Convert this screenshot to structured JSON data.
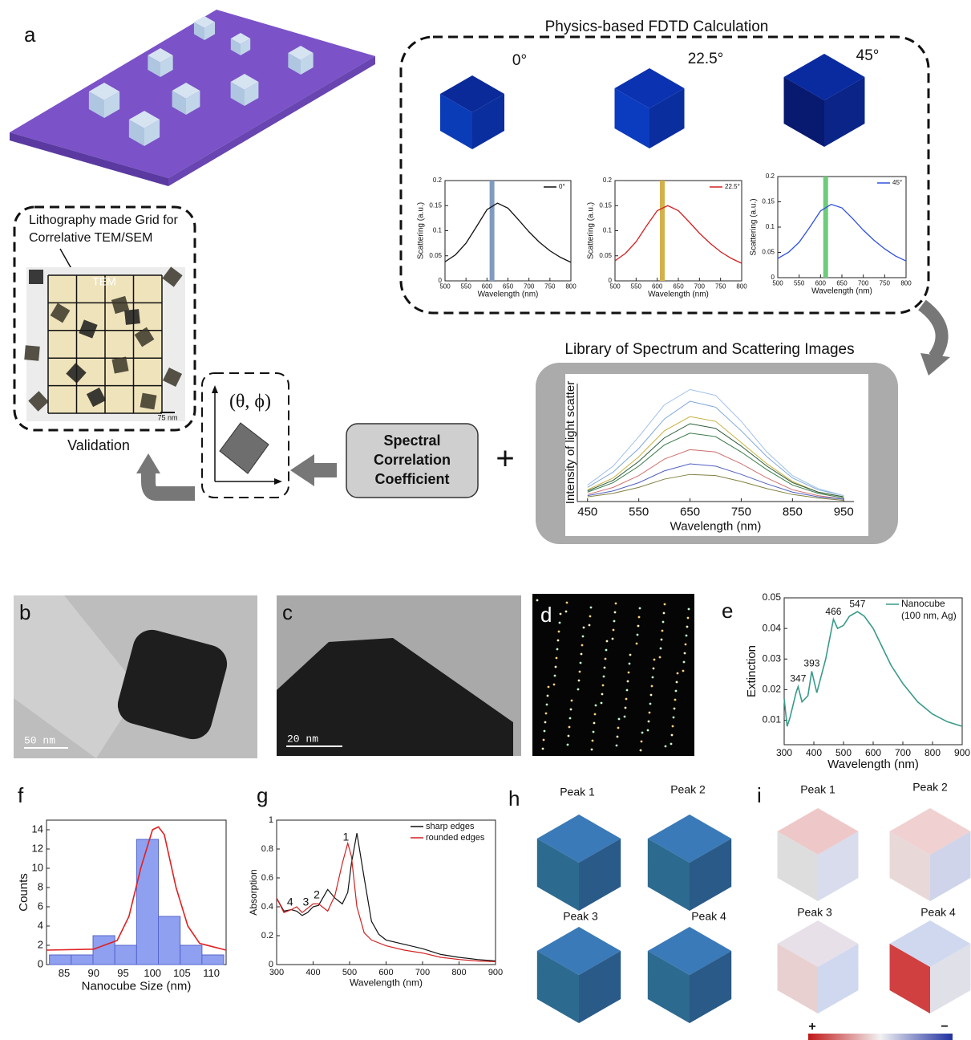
{
  "panel_labels": [
    "a",
    "b",
    "c",
    "d",
    "e",
    "f",
    "g",
    "h",
    "i"
  ],
  "fdtd": {
    "title": "Physics-based FDTD Calculation",
    "angles": [
      "0°",
      "22.5°",
      "45°"
    ]
  },
  "library_title": "Library of Spectrum and Scattering Images",
  "lithography": {
    "caption": [
      "Lithography made Grid for",
      "Correlative TEM/SEM"
    ],
    "overlay": "TEM",
    "scale_bar": "75 nm",
    "label": "Validation"
  },
  "orientation": "(θ, ϕ)",
  "correlation": [
    "Spectral",
    "Correlation",
    "Coefficient"
  ],
  "plus": "+",
  "tem_scale_bars": [
    "50 nm",
    "20 nm"
  ],
  "h_peaks": [
    "Peak 1",
    "Peak 2",
    "Peak 3",
    "Peak 4"
  ],
  "i_peaks": [
    "Peak 1",
    "Peak 2",
    "Peak 3",
    "Peak 4"
  ],
  "colorbar": [
    "+",
    "−"
  ],
  "chart_data": [
    {
      "type": "line",
      "x_label": "Wavelength (nm)",
      "y_label": "Scattering (a.u.)",
      "x": [
        500,
        525,
        550,
        575,
        600,
        625,
        650,
        675,
        700,
        725,
        750,
        775,
        800
      ],
      "series": [
        {
          "name": "0°",
          "color": "#111111",
          "values": [
            0.038,
            0.052,
            0.075,
            0.108,
            0.142,
            0.155,
            0.145,
            0.122,
            0.098,
            0.077,
            0.06,
            0.047,
            0.037
          ]
        }
      ],
      "highlight": {
        "x": 612,
        "color": "#7f9cc0"
      },
      "xlim": [
        500,
        800
      ],
      "xticks": [
        500,
        550,
        600,
        650,
        700,
        750,
        800
      ],
      "ylim": [
        0,
        0.2
      ],
      "yticks": [
        0,
        0.05,
        0.1,
        0.15,
        0.2
      ]
    },
    {
      "type": "line",
      "x_label": "Wavelength (nm)",
      "y_label": "Scattering (a.u.)",
      "x": [
        500,
        525,
        550,
        575,
        600,
        625,
        650,
        675,
        700,
        725,
        750,
        775,
        800
      ],
      "series": [
        {
          "name": "22.5°",
          "color": "#d32020",
          "values": [
            0.04,
            0.055,
            0.078,
            0.11,
            0.14,
            0.15,
            0.14,
            0.118,
            0.095,
            0.075,
            0.058,
            0.045,
            0.035
          ]
        }
      ],
      "highlight": {
        "x": 612,
        "color": "#d4b04a"
      },
      "xlim": [
        500,
        800
      ],
      "xticks": [
        500,
        550,
        600,
        650,
        700,
        750,
        800
      ],
      "ylim": [
        0,
        0.2
      ],
      "yticks": [
        0,
        0.05,
        0.1,
        0.15,
        0.2
      ]
    },
    {
      "type": "line",
      "x_label": "Wavelength (nm)",
      "y_label": "Scattering (a.u.)",
      "x": [
        500,
        525,
        550,
        575,
        600,
        625,
        650,
        675,
        700,
        725,
        750,
        775,
        800
      ],
      "series": [
        {
          "name": "45°",
          "color": "#3050e0",
          "values": [
            0.038,
            0.05,
            0.07,
            0.1,
            0.132,
            0.145,
            0.138,
            0.117,
            0.094,
            0.074,
            0.057,
            0.043,
            0.033
          ]
        }
      ],
      "highlight": {
        "x": 612,
        "color": "#6dcc7a"
      },
      "xlim": [
        500,
        800
      ],
      "xticks": [
        500,
        550,
        600,
        650,
        700,
        750,
        800
      ],
      "ylim": [
        0,
        0.2
      ],
      "yticks": [
        0,
        0.05,
        0.1,
        0.15,
        0.2
      ]
    },
    {
      "type": "line",
      "x_label": "Wavelength (nm)",
      "y_label": "Intensity of light scatter",
      "x": [
        450,
        500,
        550,
        600,
        650,
        700,
        750,
        800,
        850,
        900,
        950
      ],
      "series": [
        {
          "color": "#7fa8d8",
          "values": [
            0.12,
            0.25,
            0.45,
            0.7,
            0.85,
            0.8,
            0.6,
            0.38,
            0.2,
            0.1,
            0.05
          ]
        },
        {
          "color": "#c8b040",
          "values": [
            0.1,
            0.2,
            0.38,
            0.6,
            0.72,
            0.68,
            0.5,
            0.32,
            0.17,
            0.08,
            0.04
          ]
        },
        {
          "color": "#3a7a4a",
          "values": [
            0.08,
            0.16,
            0.3,
            0.48,
            0.58,
            0.55,
            0.42,
            0.27,
            0.14,
            0.07,
            0.03
          ]
        },
        {
          "color": "#d07070",
          "values": [
            0.06,
            0.12,
            0.22,
            0.36,
            0.44,
            0.42,
            0.32,
            0.2,
            0.1,
            0.05,
            0.02
          ]
        },
        {
          "color": "#5060c0",
          "values": [
            0.05,
            0.09,
            0.16,
            0.26,
            0.32,
            0.3,
            0.23,
            0.15,
            0.08,
            0.04,
            0.02
          ]
        },
        {
          "color": "#a0c0e8",
          "values": [
            0.14,
            0.3,
            0.55,
            0.82,
            0.95,
            0.9,
            0.68,
            0.42,
            0.22,
            0.11,
            0.05
          ]
        },
        {
          "color": "#808040",
          "values": [
            0.04,
            0.07,
            0.12,
            0.19,
            0.23,
            0.22,
            0.17,
            0.11,
            0.06,
            0.03,
            0.01
          ]
        },
        {
          "color": "#2a5a3a",
          "values": [
            0.09,
            0.18,
            0.34,
            0.54,
            0.66,
            0.62,
            0.47,
            0.3,
            0.16,
            0.08,
            0.04
          ]
        }
      ],
      "xlim": [
        430,
        970
      ],
      "xticks": [
        450,
        550,
        650,
        750,
        850,
        950
      ],
      "ylim": [
        0,
        1
      ]
    },
    {
      "type": "line",
      "x_label": "Wavelength (nm)",
      "y_label": "Extinction",
      "x": [
        300,
        310,
        320,
        340,
        347,
        360,
        380,
        393,
        410,
        440,
        466,
        480,
        500,
        520,
        547,
        570,
        600,
        630,
        660,
        700,
        750,
        800,
        850,
        900
      ],
      "series": [
        {
          "name": "Nanocube",
          "color": "#3a9a8a",
          "values": [
            0.017,
            0.008,
            0.011,
            0.019,
            0.021,
            0.016,
            0.018,
            0.026,
            0.019,
            0.03,
            0.043,
            0.04,
            0.041,
            0.044,
            0.0455,
            0.044,
            0.04,
            0.034,
            0.028,
            0.022,
            0.016,
            0.012,
            0.0095,
            0.008
          ]
        }
      ],
      "legend_note": "(100 nm, Ag)",
      "peak_labels": [
        347,
        393,
        466,
        547
      ],
      "xlim": [
        300,
        900
      ],
      "xticks": [
        300,
        400,
        500,
        600,
        700,
        800,
        900
      ],
      "ylim": [
        0.002,
        0.05
      ],
      "yticks": [
        0.01,
        0.02,
        0.03,
        0.04,
        0.05
      ]
    },
    {
      "type": "histogram",
      "x_label": "Nanocube Size (nm)",
      "y_label": "Counts",
      "bins": [
        82.5,
        86.2,
        89.9,
        93.6,
        97.3,
        101,
        104.7,
        108.4,
        112.1
      ],
      "values": [
        1,
        1,
        3,
        2,
        13,
        5,
        2,
        1
      ],
      "color": "#8fa0f0",
      "series": [
        {
          "color": "#e02020",
          "x": [
            82,
            90,
            94,
            96,
            98,
            100,
            101,
            102,
            104,
            106,
            108,
            112.5
          ],
          "values": [
            1.5,
            1.6,
            2.5,
            5,
            10,
            14,
            14.3,
            13.5,
            8,
            4,
            2.2,
            1.5
          ]
        }
      ],
      "xlim": [
        82,
        112.5
      ],
      "xticks": [
        85,
        90,
        95,
        100,
        105,
        110
      ],
      "ylim": [
        0,
        15
      ],
      "yticks": [
        0,
        2,
        4,
        6,
        8,
        10,
        12,
        14
      ]
    },
    {
      "type": "line",
      "x_label": "Wavelength (nm)",
      "y_label": "Absorption",
      "x": [
        300,
        320,
        340,
        355,
        370,
        385,
        400,
        415,
        440,
        460,
        480,
        495,
        505,
        520,
        540,
        560,
        580,
        600,
        650,
        700,
        750,
        800,
        850,
        900
      ],
      "series": [
        {
          "name": "sharp edges",
          "color": "#111111",
          "values": [
            0.46,
            0.37,
            0.38,
            0.37,
            0.34,
            0.36,
            0.4,
            0.41,
            0.52,
            0.46,
            0.42,
            0.5,
            0.7,
            0.91,
            0.6,
            0.3,
            0.21,
            0.17,
            0.14,
            0.11,
            0.07,
            0.05,
            0.035,
            0.025
          ]
        },
        {
          "name": "rounded edges",
          "color": "#d32020",
          "values": [
            0.46,
            0.36,
            0.38,
            0.4,
            0.36,
            0.39,
            0.42,
            0.42,
            0.37,
            0.48,
            0.7,
            0.84,
            0.75,
            0.4,
            0.22,
            0.17,
            0.15,
            0.13,
            0.1,
            0.08,
            0.05,
            0.035,
            0.025,
            0.02
          ]
        }
      ],
      "annotations": [
        {
          "text": "1",
          "x": 490,
          "y": 0.88
        },
        {
          "text": "2",
          "x": 410,
          "y": 0.48
        },
        {
          "text": "3",
          "x": 380,
          "y": 0.43
        },
        {
          "text": "4",
          "x": 337,
          "y": 0.43
        }
      ],
      "xlim": [
        300,
        900
      ],
      "xticks": [
        300,
        400,
        500,
        600,
        700,
        800,
        900
      ],
      "ylim": [
        0,
        1
      ],
      "yticks": [
        0,
        0.2,
        0.4,
        0.6,
        0.8,
        1
      ]
    }
  ]
}
